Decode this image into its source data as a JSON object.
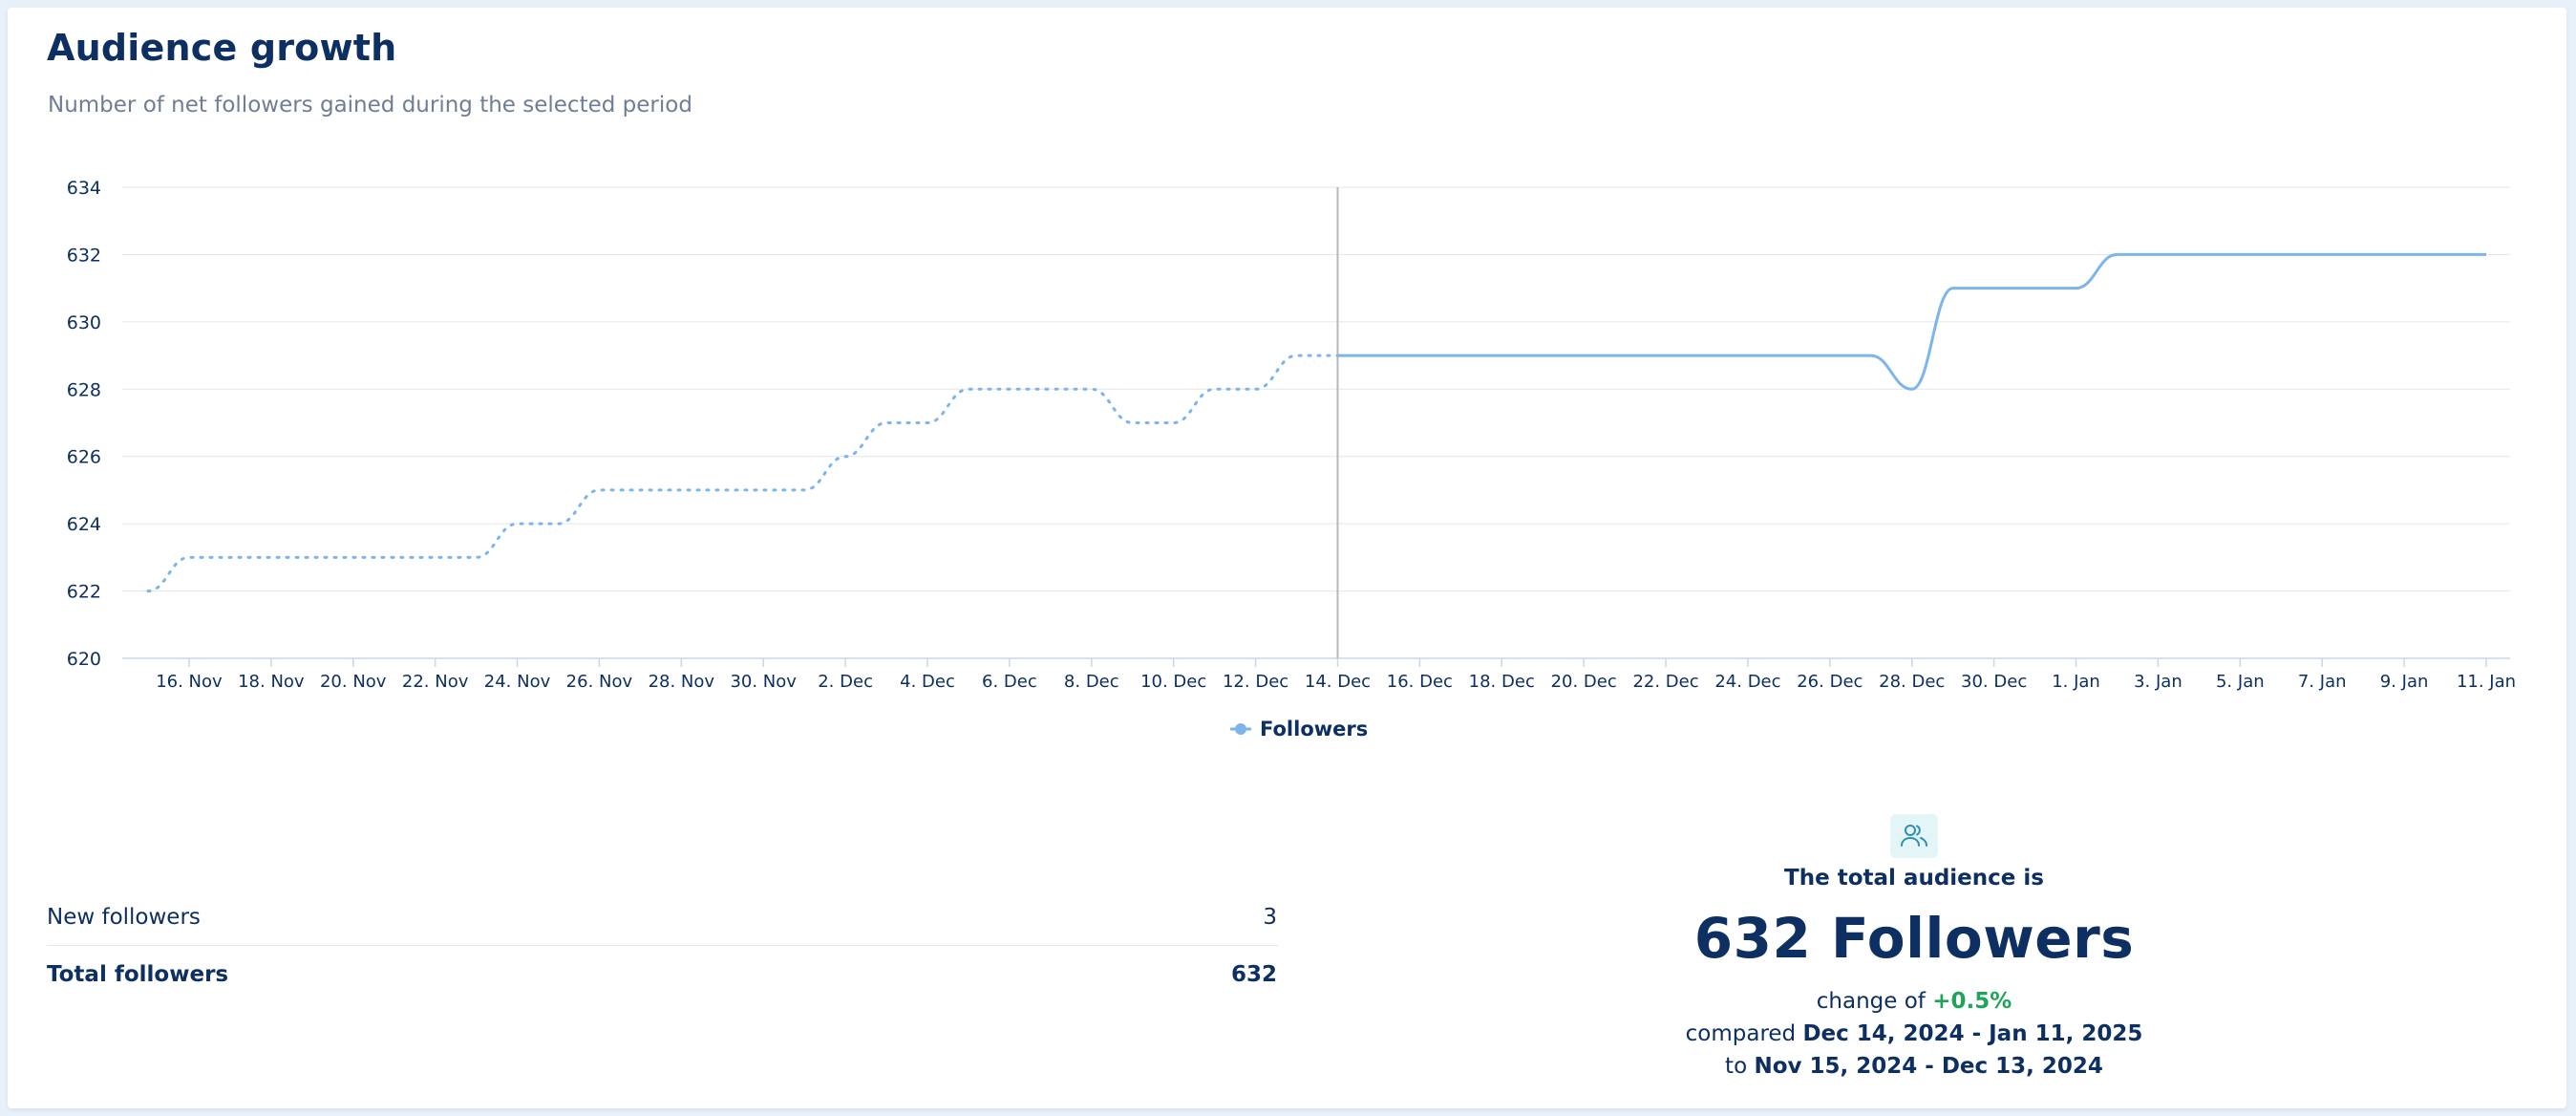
{
  "header": {
    "title": "Audience growth",
    "subtitle": "Number of net followers gained during the selected period"
  },
  "chart_data": {
    "type": "line",
    "y_ticks": [
      620,
      622,
      624,
      626,
      628,
      630,
      632,
      634
    ],
    "ylim": [
      620,
      634
    ],
    "grid": true,
    "legend": "bottom-center",
    "x_tick_labels": [
      "16. Nov",
      "18. Nov",
      "20. Nov",
      "22. Nov",
      "24. Nov",
      "26. Nov",
      "28. Nov",
      "30. Nov",
      "2. Dec",
      "4. Dec",
      "6. Dec",
      "8. Dec",
      "10. Dec",
      "12. Dec",
      "14. Dec",
      "16. Dec",
      "18. Dec",
      "20. Dec",
      "22. Dec",
      "24. Dec",
      "26. Dec",
      "28. Dec",
      "30. Dec",
      "1. Jan",
      "3. Jan",
      "5. Jan",
      "7. Jan",
      "9. Jan",
      "11. Jan"
    ],
    "series": [
      {
        "name": "Followers",
        "color": "#7cb5ec",
        "dashed_previous_period": true,
        "x": [
          "2024-11-15",
          "2024-11-16",
          "2024-11-23",
          "2024-11-24",
          "2024-11-25",
          "2024-11-26",
          "2024-12-01",
          "2024-12-02",
          "2024-12-03",
          "2024-12-04",
          "2024-12-05",
          "2024-12-06",
          "2024-12-07",
          "2024-12-08",
          "2024-12-09",
          "2024-12-10",
          "2024-12-11",
          "2024-12-12",
          "2024-12-13",
          "2024-12-14",
          "2024-12-27",
          "2024-12-28",
          "2024-12-29",
          "2024-12-30",
          "2024-12-31",
          "2025-01-01",
          "2025-01-02",
          "2025-01-03",
          "2025-01-11"
        ],
        "values": [
          622,
          623,
          623,
          624,
          624,
          625,
          625,
          626,
          627,
          627,
          628,
          628,
          628,
          628,
          627,
          627,
          628,
          628,
          629,
          629,
          629,
          628,
          631,
          631,
          631,
          631,
          632,
          632,
          632
        ]
      }
    ],
    "current_period_start": "2024-12-14"
  },
  "stats": {
    "new_followers_label": "New followers",
    "new_followers_value": "3",
    "total_followers_label": "Total followers",
    "total_followers_value": "632"
  },
  "summary": {
    "icon": "users-icon",
    "heading": "The total audience is",
    "total": "632 Followers",
    "change_prefix": "change of",
    "change_value": "+0.5%",
    "compared_prefix": "compared",
    "current_range": "Dec 14, 2024 - Jan 11, 2025",
    "to_prefix": "to",
    "previous_range": "Nov 15, 2024 - Dec 13, 2024"
  },
  "colors": {
    "title": "#0d2f62",
    "line": "#7cb5ec",
    "positive": "#1fa55a",
    "icon_bg": "#e4f5f8"
  }
}
